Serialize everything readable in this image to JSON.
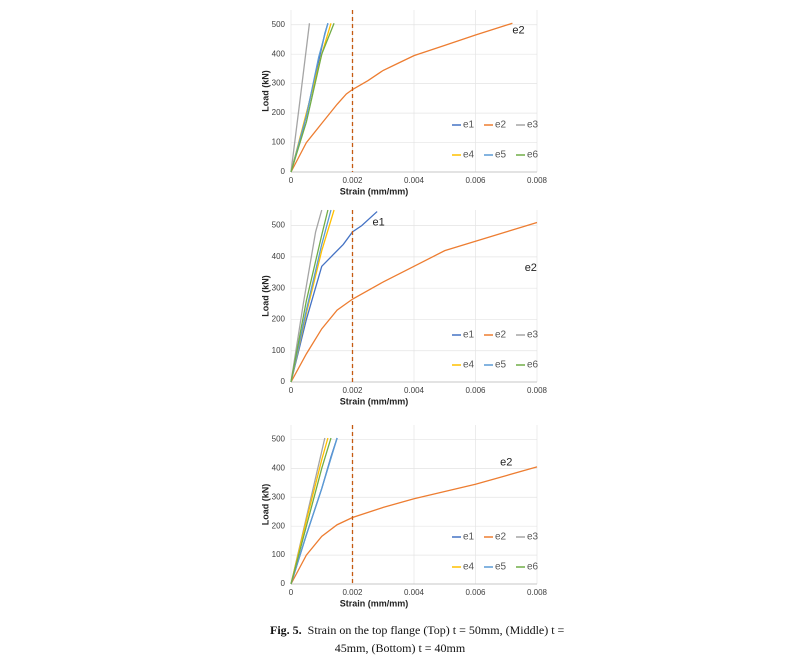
{
  "chart_data": [
    {
      "type": "line",
      "xlabel": "Strain (mm/mm)",
      "ylabel": "Load (kN)",
      "xlim": [
        0,
        0.008
      ],
      "ylim": [
        0,
        550
      ],
      "xticks": [
        0,
        0.002,
        0.004,
        0.006,
        0.008
      ],
      "yticks": [
        0,
        100,
        200,
        300,
        400,
        500
      ],
      "grid": true,
      "reference_line": {
        "x": 0.002,
        "color": "#c55a11"
      },
      "series": [
        {
          "name": "e1",
          "color": "#4472c4",
          "x": [
            0,
            0.0004,
            0.0008,
            0.0011,
            0.0012
          ],
          "values": [
            0,
            150,
            330,
            470,
            505
          ]
        },
        {
          "name": "e2",
          "color": "#ed7d31",
          "x": [
            0,
            0.0005,
            0.001,
            0.0015,
            0.0018,
            0.002,
            0.0025,
            0.003,
            0.0035,
            0.004,
            0.005,
            0.006,
            0.0072
          ],
          "values": [
            0,
            100,
            165,
            230,
            265,
            280,
            310,
            345,
            370,
            395,
            430,
            465,
            505
          ]
        },
        {
          "name": "e3",
          "color": "#a5a5a5",
          "x": [
            0,
            0.0003,
            0.0006
          ],
          "values": [
            0,
            250,
            505
          ]
        },
        {
          "name": "e4",
          "color": "#ffc000",
          "x": [
            0,
            0.0005,
            0.001,
            0.0013
          ],
          "values": [
            0,
            200,
            400,
            505
          ]
        },
        {
          "name": "e5",
          "color": "#5b9bd5",
          "x": [
            0,
            0.0005,
            0.0009,
            0.0012
          ],
          "values": [
            0,
            190,
            390,
            505
          ]
        },
        {
          "name": "e6",
          "color": "#70ad47",
          "x": [
            0,
            0.0005,
            0.001,
            0.0014
          ],
          "values": [
            0,
            170,
            400,
            505
          ]
        }
      ],
      "annotations": [
        {
          "text": "e2",
          "x": 0.0072,
          "y": 480
        }
      ]
    },
    {
      "type": "line",
      "xlabel": "Strain (mm/mm)",
      "ylabel": "Load (kN)",
      "xlim": [
        0,
        0.008
      ],
      "ylim": [
        0,
        550
      ],
      "xticks": [
        0,
        0.002,
        0.004,
        0.006,
        0.008
      ],
      "yticks": [
        0,
        100,
        200,
        300,
        400,
        500
      ],
      "grid": true,
      "reference_line": {
        "x": 0.002,
        "color": "#c55a11"
      },
      "series": [
        {
          "name": "e1",
          "color": "#4472c4",
          "x": [
            0,
            0.0005,
            0.001,
            0.0013,
            0.0017,
            0.002,
            0.0023,
            0.0028
          ],
          "values": [
            0,
            200,
            370,
            400,
            440,
            480,
            500,
            545
          ]
        },
        {
          "name": "e2",
          "color": "#ed7d31",
          "x": [
            0,
            0.0005,
            0.001,
            0.0015,
            0.002,
            0.003,
            0.004,
            0.005,
            0.006,
            0.007,
            0.008
          ],
          "values": [
            0,
            90,
            170,
            230,
            265,
            320,
            370,
            420,
            450,
            480,
            510
          ]
        },
        {
          "name": "e3",
          "color": "#a5a5a5",
          "x": [
            0,
            0.0004,
            0.0008,
            0.001
          ],
          "values": [
            0,
            250,
            480,
            550
          ]
        },
        {
          "name": "e4",
          "color": "#ffc000",
          "x": [
            0,
            0.0005,
            0.001,
            0.0014
          ],
          "values": [
            0,
            220,
            420,
            550
          ]
        },
        {
          "name": "e5",
          "color": "#5b9bd5",
          "x": [
            0,
            0.0005,
            0.001,
            0.0013
          ],
          "values": [
            0,
            230,
            440,
            550
          ]
        },
        {
          "name": "e6",
          "color": "#70ad47",
          "x": [
            0,
            0.0005,
            0.001,
            0.0012
          ],
          "values": [
            0,
            260,
            470,
            550
          ]
        }
      ],
      "annotations": [
        {
          "text": "e1",
          "x": 0.00265,
          "y": 510
        },
        {
          "text": "e2",
          "x": 0.0076,
          "y": 365
        }
      ]
    },
    {
      "type": "line",
      "xlabel": "Strain (mm/mm)",
      "ylabel": "Load (kN)",
      "xlim": [
        0,
        0.008
      ],
      "ylim": [
        0,
        550
      ],
      "xticks": [
        0,
        0.002,
        0.004,
        0.006,
        0.008
      ],
      "yticks": [
        0,
        100,
        200,
        300,
        400,
        500
      ],
      "grid": true,
      "reference_line": {
        "x": 0.002,
        "color": "#c55a11"
      },
      "series": [
        {
          "name": "e1",
          "color": "#4472c4",
          "x": [
            0,
            0.0005,
            0.001,
            0.0013,
            0.0015
          ],
          "values": [
            0,
            170,
            330,
            440,
            505
          ]
        },
        {
          "name": "e2",
          "color": "#ed7d31",
          "x": [
            0,
            0.0005,
            0.001,
            0.0015,
            0.002,
            0.003,
            0.004,
            0.005,
            0.006,
            0.007,
            0.008
          ],
          "values": [
            0,
            100,
            165,
            205,
            230,
            265,
            295,
            320,
            345,
            375,
            405
          ]
        },
        {
          "name": "e3",
          "color": "#a5a5a5",
          "x": [
            0,
            0.0005,
            0.0011
          ],
          "values": [
            0,
            230,
            505
          ]
        },
        {
          "name": "e4",
          "color": "#ffc000",
          "x": [
            0,
            0.0005,
            0.001,
            0.0012
          ],
          "values": [
            0,
            220,
            430,
            505
          ]
        },
        {
          "name": "e5",
          "color": "#5b9bd5",
          "x": [
            0,
            0.0005,
            0.001,
            0.0015
          ],
          "values": [
            0,
            170,
            330,
            505
          ]
        },
        {
          "name": "e6",
          "color": "#70ad47",
          "x": [
            0,
            0.0005,
            0.001,
            0.0013
          ],
          "values": [
            0,
            200,
            400,
            505
          ]
        }
      ],
      "annotations": [
        {
          "text": "e2",
          "x": 0.0068,
          "y": 420
        }
      ]
    }
  ],
  "caption": {
    "label": "Fig. 5.",
    "lines": [
      "Strain on the top flange (Top) t = 50mm, (Middle) t =",
      "45mm, (Bottom) t = 40mm"
    ]
  }
}
